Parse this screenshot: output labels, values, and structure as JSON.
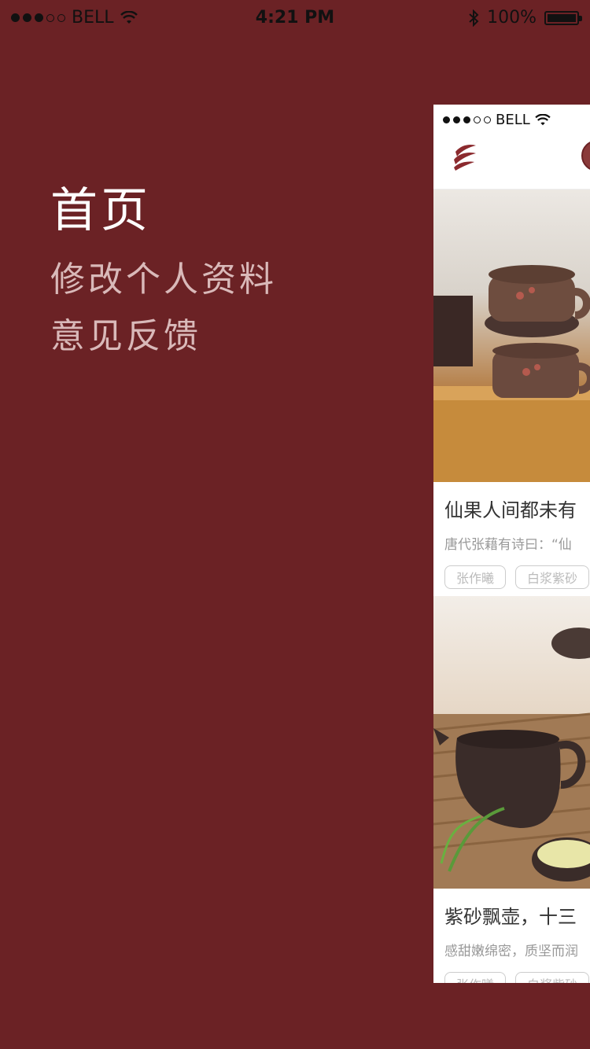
{
  "status_bar": {
    "carrier": "BELL",
    "time": "4:21 PM",
    "battery": "100%",
    "battery_level": 1.0
  },
  "menu": {
    "items": [
      {
        "label": "首页",
        "active": true
      },
      {
        "label": "修改个人资料",
        "active": false
      },
      {
        "label": "意见反馈",
        "active": false
      }
    ]
  },
  "preview": {
    "status_bar": {
      "carrier": "BELL"
    },
    "cards": [
      {
        "title": "仙果人间都未有",
        "desc": "唐代张藉有诗曰：“仙",
        "tags": [
          "张作曦",
          "白浆紫砂"
        ]
      },
      {
        "title": "紫砂飘壶，十三",
        "desc": "感甜嫩绵密，质坚而润",
        "tags": [
          "张作曦",
          "白浆紫砂"
        ]
      }
    ]
  },
  "colors": {
    "background": "#6b2225",
    "accent": "#6b2225"
  }
}
